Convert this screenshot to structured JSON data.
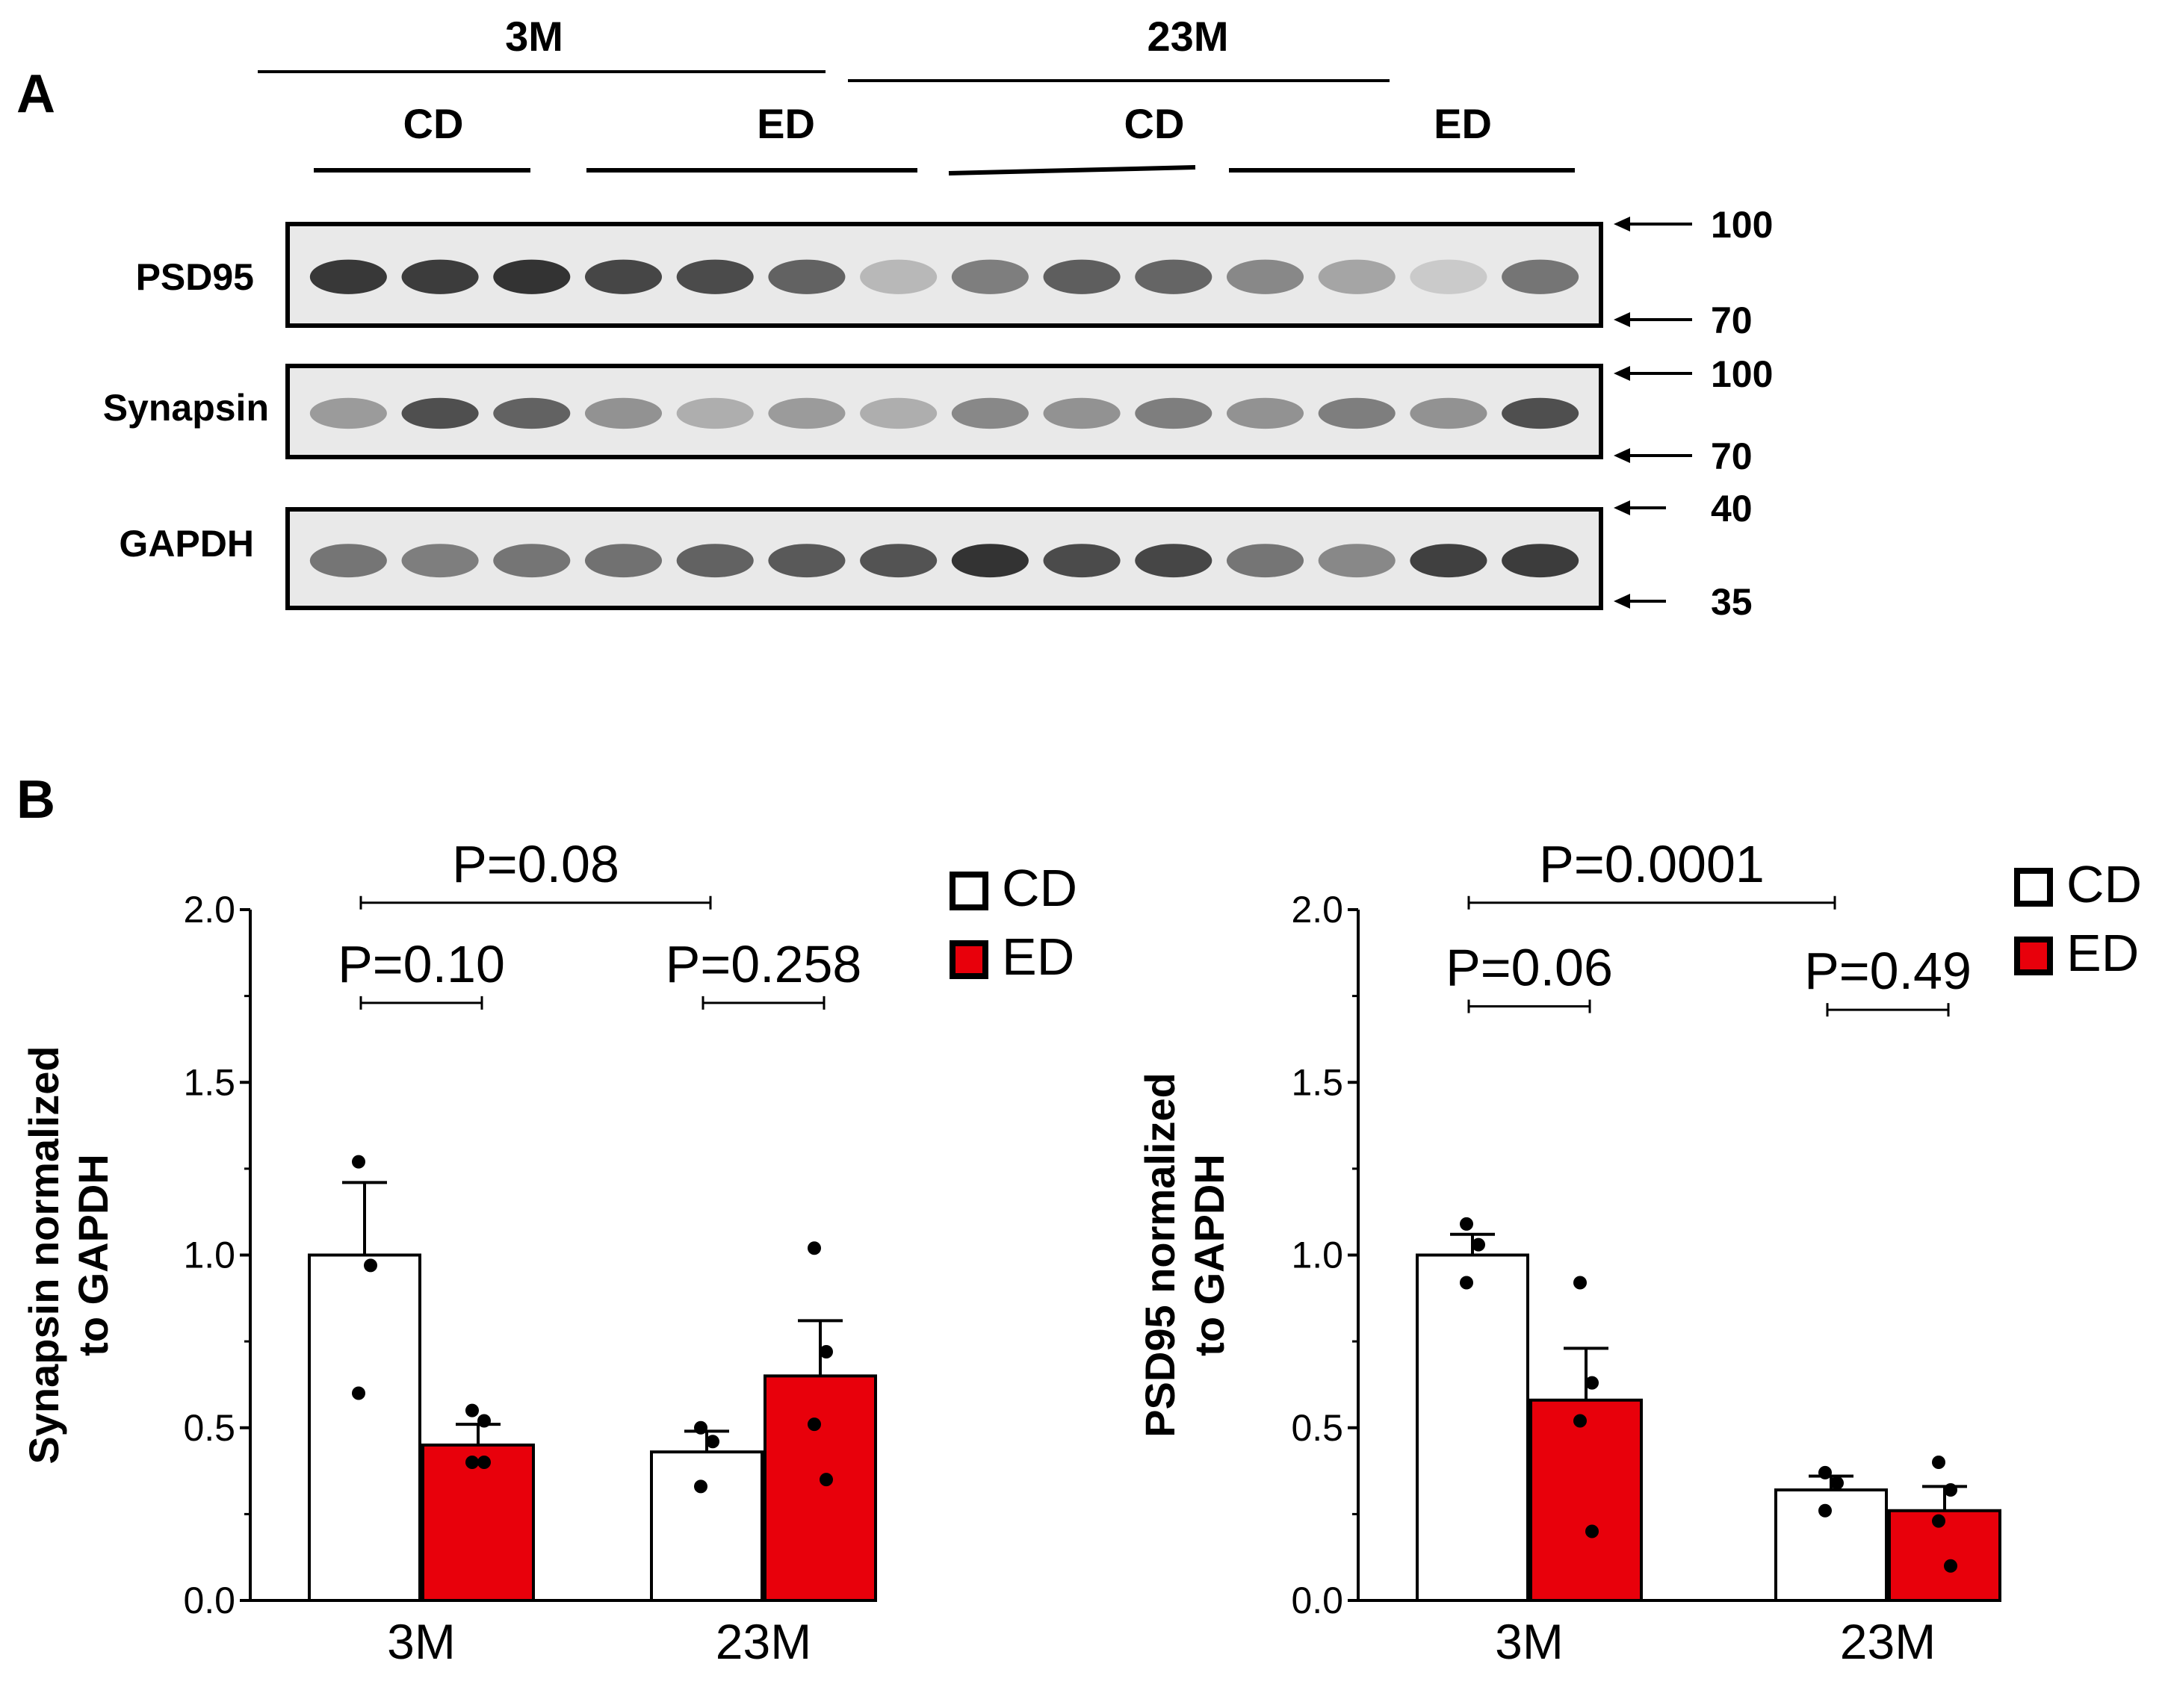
{
  "panels": {
    "a_label": "A",
    "b_label": "B"
  },
  "blot": {
    "age_groups": [
      "3M",
      "23M"
    ],
    "diet_groups": [
      "CD",
      "ED",
      "CD",
      "ED"
    ],
    "rows": [
      {
        "label": "PSD95",
        "marker_top": "100",
        "marker_bottom": "70",
        "band_intensity": [
          0.92,
          0.9,
          0.95,
          0.85,
          0.82,
          0.7,
          0.25,
          0.55,
          0.72,
          0.68,
          0.5,
          0.35,
          0.15,
          0.6
        ]
      },
      {
        "label": "Synapsin",
        "marker_top": "100",
        "marker_bottom": "70",
        "band_intensity": [
          0.4,
          0.8,
          0.7,
          0.45,
          0.3,
          0.4,
          0.3,
          0.5,
          0.45,
          0.55,
          0.45,
          0.55,
          0.45,
          0.8
        ]
      },
      {
        "label": "GAPDH",
        "marker_top": "40",
        "marker_bottom": "35",
        "band_intensity": [
          0.6,
          0.55,
          0.6,
          0.62,
          0.7,
          0.75,
          0.78,
          0.95,
          0.82,
          0.85,
          0.6,
          0.5,
          0.88,
          0.9
        ]
      }
    ]
  },
  "colors": {
    "cd_fill": "#ffffff",
    "ed_fill": "#e8000b",
    "stroke": "#000000"
  },
  "chart_data": [
    {
      "type": "bar",
      "ylabel_line1": "Synapsin normalized",
      "ylabel_line2": "to GAPDH",
      "categories": [
        "3M",
        "23M"
      ],
      "ylim": [
        0,
        2.0
      ],
      "yticks": [
        "0.0",
        "0.5",
        "1.0",
        "1.5",
        "2.0"
      ],
      "legend": [
        "CD",
        "ED"
      ],
      "legend_position": "top-right",
      "series": [
        {
          "name": "CD",
          "values": [
            1.0,
            0.43
          ],
          "sem": [
            0.21,
            0.06
          ],
          "points": [
            [
              1.27,
              0.97,
              0.6
            ],
            [
              0.5,
              0.46,
              0.33
            ]
          ]
        },
        {
          "name": "ED",
          "values": [
            0.45,
            0.65
          ],
          "sem": [
            0.06,
            0.16
          ],
          "points": [
            [
              0.55,
              0.52,
              0.4,
              0.4
            ],
            [
              1.02,
              0.72,
              0.51,
              0.35
            ]
          ]
        }
      ],
      "pvalues": [
        {
          "text": "P=0.08",
          "from": "3M-CD",
          "to": "23M-CD",
          "level": 2.02
        },
        {
          "text": "P=0.10",
          "from": "3M-CD",
          "to": "3M-ED",
          "level": 1.73
        },
        {
          "text": "P=0.258",
          "from": "23M-CD",
          "to": "23M-ED",
          "level": 1.73
        }
      ]
    },
    {
      "type": "bar",
      "ylabel_line1": "PSD95 normalized",
      "ylabel_line2": "to GAPDH",
      "categories": [
        "3M",
        "23M"
      ],
      "ylim": [
        0,
        2.0
      ],
      "yticks": [
        "0.0",
        "0.5",
        "1.0",
        "1.5",
        "2.0"
      ],
      "legend": [
        "CD",
        "ED"
      ],
      "legend_position": "top-right",
      "series": [
        {
          "name": "CD",
          "values": [
            1.0,
            0.32
          ],
          "sem": [
            0.06,
            0.04
          ],
          "points": [
            [
              1.09,
              1.03,
              0.92
            ],
            [
              0.37,
              0.34,
              0.26
            ]
          ]
        },
        {
          "name": "ED",
          "values": [
            0.58,
            0.26
          ],
          "sem": [
            0.15,
            0.07
          ],
          "points": [
            [
              0.92,
              0.63,
              0.52,
              0.2
            ],
            [
              0.4,
              0.32,
              0.23,
              0.1
            ]
          ]
        }
      ],
      "pvalues": [
        {
          "text": "P=0.0001",
          "from": "3M-CD",
          "to": "23M-CD",
          "level": 2.02
        },
        {
          "text": "P=0.06",
          "from": "3M-CD",
          "to": "3M-ED",
          "level": 1.72
        },
        {
          "text": "P=0.49",
          "from": "23M-CD",
          "to": "23M-ED",
          "level": 1.71
        }
      ]
    }
  ]
}
